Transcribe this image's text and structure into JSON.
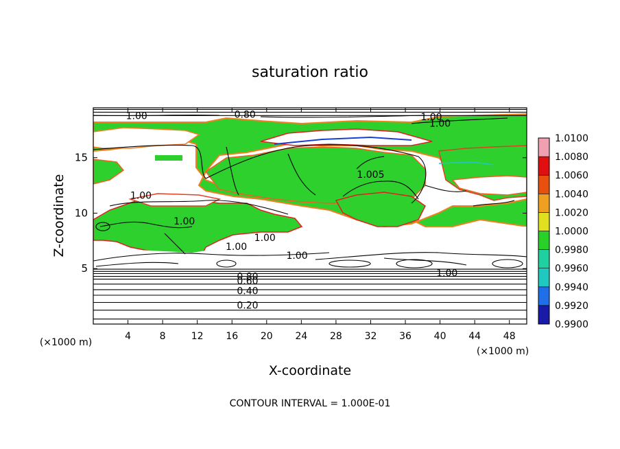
{
  "chart_data": {
    "type": "heatmap",
    "title": "saturation ratio",
    "xlabel": "X-coordinate",
    "ylabel": "Z-coordinate",
    "x_unit": "(×1000 m)",
    "x_unit_right": "(×1000 m)",
    "footer": "CONTOUR INTERVAL = 1.000E-01",
    "xlim": [
      0,
      50
    ],
    "ylim": [
      0,
      19.5
    ],
    "x_ticks": [
      4,
      8,
      12,
      16,
      20,
      24,
      28,
      32,
      36,
      40,
      44,
      48
    ],
    "y_ticks": [
      5,
      10,
      15
    ],
    "colorbar": {
      "levels": [
        "0.9900",
        "0.9920",
        "0.9940",
        "0.9960",
        "0.9980",
        "1.0000",
        "1.0020",
        "1.0040",
        "1.0060",
        "1.0080",
        "1.0100"
      ],
      "colors": [
        "#6a0dad",
        "#1a1aa8",
        "#1e6fe8",
        "#20c8c0",
        "#20d0a0",
        "#28d028",
        "#e0e020",
        "#f0a020",
        "#e85010",
        "#e01010",
        "#f0a0b0"
      ]
    },
    "contour_labels": [
      {
        "text": "1.00",
        "x": 5,
        "y": 18.8
      },
      {
        "text": "0.80",
        "x": 17.5,
        "y": 18.9
      },
      {
        "text": "1.00",
        "x": 39,
        "y": 18.7
      },
      {
        "text": "1.00",
        "x": 40,
        "y": 18.1
      },
      {
        "text": "1.005",
        "x": 32,
        "y": 13.5
      },
      {
        "text": "1.00",
        "x": 5.5,
        "y": 11.6
      },
      {
        "text": "1.00",
        "x": 10.5,
        "y": 9.3
      },
      {
        "text": "1.00",
        "x": 16.5,
        "y": 7.0
      },
      {
        "text": "1.00",
        "x": 19.8,
        "y": 7.8
      },
      {
        "text": "1.00",
        "x": 23.5,
        "y": 6.2
      },
      {
        "text": "1.00",
        "x": 40.8,
        "y": 4.6
      },
      {
        "text": "0.80",
        "x": 17.8,
        "y": 4.3
      },
      {
        "text": "0.60",
        "x": 17.8,
        "y": 3.9
      },
      {
        "text": "0.40",
        "x": 17.8,
        "y": 3.0
      },
      {
        "text": "0.20",
        "x": 17.8,
        "y": 1.7
      }
    ],
    "horizontal_contours_y": [
      4.95,
      4.75,
      4.55,
      4.3,
      4.05,
      3.6,
      3.1,
      2.6,
      1.95,
      1.25,
      0.45,
      19.1,
      18.8,
      19.35
    ]
  }
}
